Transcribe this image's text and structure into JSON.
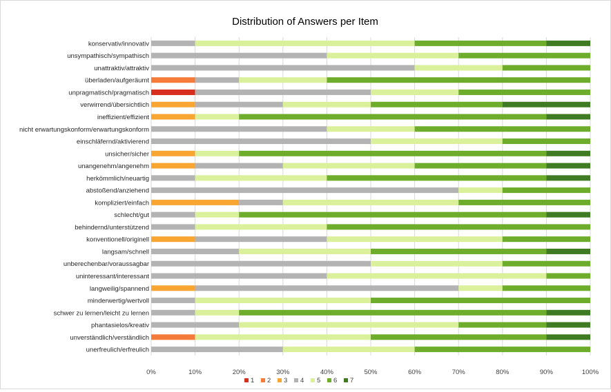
{
  "chart_data": {
    "type": "bar",
    "stacked": "percent",
    "orientation": "horizontal",
    "title": "Distribution of Answers per Item",
    "xlabel": "",
    "ylabel": "",
    "xlim": [
      0,
      100
    ],
    "x_tick_labels": [
      "0%",
      "10%",
      "20%",
      "30%",
      "40%",
      "50%",
      "60%",
      "70%",
      "80%",
      "90%",
      "100%"
    ],
    "legend_position": "bottom",
    "grid": true,
    "categories": [
      "konservativ/innovativ",
      "unsympathisch/sympathisch",
      "unattraktiv/attraktiv",
      "überladen/aufgeräumt",
      "unpragmatisch/pragmatisch",
      "verwirrend/übersichtlich",
      "ineffizient/effizient",
      "nicht erwartungskonform/erwartungskonform",
      "einschläfernd/aktivierend",
      "unsicher/sicher",
      "unangenehm/angenehm",
      "herkömmlich/neuartig",
      "abstoßend/anziehend",
      "kompliziert/einfach",
      "schlecht/gut",
      "behindernd/unterstützend",
      "konventionell/originell",
      "langsam/schnell",
      "unberechenbar/voraussagbar",
      "uninteressant/interessant",
      "langweilig/spannend",
      "minderwertig/wertvoll",
      "schwer zu lernen/leicht zu lernen",
      "phantasielos/kreativ",
      "unverständlich/verständlich",
      "unerfreulich/erfreulich"
    ],
    "series": [
      {
        "name": "1",
        "color": "#d62f1f",
        "values": [
          0,
          0,
          0,
          0,
          10,
          0,
          0,
          0,
          0,
          0,
          0,
          0,
          0,
          0,
          0,
          0,
          0,
          0,
          0,
          0,
          0,
          0,
          0,
          0,
          0,
          0
        ]
      },
      {
        "name": "2",
        "color": "#f47b3a",
        "values": [
          0,
          0,
          0,
          10,
          0,
          0,
          0,
          0,
          0,
          0,
          0,
          0,
          0,
          0,
          0,
          0,
          0,
          0,
          0,
          0,
          0,
          0,
          0,
          0,
          10,
          0
        ]
      },
      {
        "name": "3",
        "color": "#f8a531",
        "values": [
          0,
          0,
          0,
          0,
          0,
          10,
          10,
          0,
          0,
          10,
          10,
          0,
          0,
          20,
          0,
          0,
          10,
          0,
          0,
          0,
          10,
          0,
          0,
          0,
          0,
          0
        ]
      },
      {
        "name": "4",
        "color": "#b3b3b3",
        "values": [
          10,
          40,
          60,
          10,
          40,
          20,
          0,
          40,
          50,
          0,
          20,
          10,
          70,
          10,
          10,
          10,
          30,
          20,
          50,
          40,
          60,
          10,
          10,
          20,
          0,
          30
        ]
      },
      {
        "name": "5",
        "color": "#daf09a",
        "values": [
          50,
          30,
          20,
          20,
          20,
          20,
          10,
          20,
          30,
          10,
          30,
          30,
          10,
          40,
          10,
          30,
          40,
          30,
          30,
          50,
          10,
          40,
          10,
          50,
          40,
          30
        ]
      },
      {
        "name": "6",
        "color": "#6eac2c",
        "values": [
          30,
          30,
          20,
          60,
          30,
          30,
          70,
          40,
          20,
          70,
          30,
          50,
          20,
          30,
          70,
          60,
          20,
          40,
          20,
          10,
          20,
          50,
          70,
          20,
          40,
          40
        ]
      },
      {
        "name": "7",
        "color": "#3f7b22",
        "values": [
          10,
          0,
          0,
          0,
          0,
          20,
          10,
          0,
          0,
          10,
          10,
          10,
          0,
          0,
          10,
          0,
          0,
          10,
          0,
          0,
          0,
          0,
          10,
          10,
          10,
          0
        ]
      }
    ]
  }
}
